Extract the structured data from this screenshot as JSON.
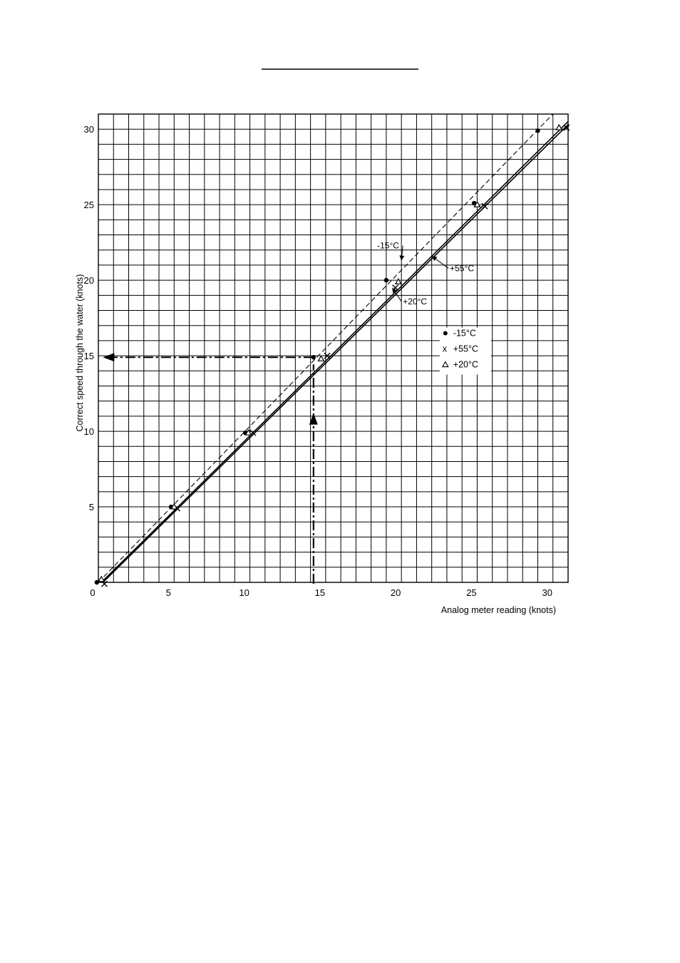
{
  "chart_data": {
    "type": "line",
    "title": "",
    "xlabel": "Analog meter reading (knots)",
    "ylabel": "Correct speed through the water (knots)",
    "xlim": [
      0,
      31
    ],
    "ylim": [
      0,
      31
    ],
    "grid": true,
    "x_ticks": [
      {
        "value": 0,
        "label": "0"
      },
      {
        "value": 5,
        "label": "5"
      },
      {
        "value": 10,
        "label": "10"
      },
      {
        "value": 15,
        "label": "15"
      },
      {
        "value": 20,
        "label": "20"
      },
      {
        "value": 25,
        "label": "25"
      },
      {
        "value": 30,
        "label": "30"
      }
    ],
    "y_ticks": [
      {
        "value": 5,
        "label": "5"
      },
      {
        "value": 10,
        "label": "10"
      },
      {
        "value": 15,
        "label": "15"
      },
      {
        "value": 20,
        "label": "20"
      },
      {
        "value": 25,
        "label": "25"
      },
      {
        "value": 30,
        "label": "30"
      }
    ],
    "series": [
      {
        "name": "-15°C",
        "line_style": "dashed",
        "marker": "dot",
        "line": [
          [
            0,
            0
          ],
          [
            30,
            31
          ]
        ],
        "points": [
          [
            -0.1,
            0
          ],
          [
            4.8,
            5
          ],
          [
            9.7,
            9.9
          ],
          [
            14.2,
            14.9
          ],
          [
            19.0,
            20.0
          ],
          [
            24.8,
            25.1
          ],
          [
            29.0,
            29.9
          ]
        ]
      },
      {
        "name": "+55°C",
        "line_style": "solid",
        "marker": "x",
        "line": [
          [
            0.3,
            0
          ],
          [
            31,
            30.3
          ]
        ],
        "points": [
          [
            0.4,
            -0.1
          ],
          [
            5.2,
            4.9
          ],
          [
            10.2,
            9.9
          ],
          [
            15.1,
            15.0
          ],
          [
            19.6,
            19.5
          ],
          [
            25.5,
            24.9
          ],
          [
            30.9,
            30.1
          ]
        ]
      },
      {
        "name": "+20°C",
        "line_style": "solid",
        "marker": "triangle",
        "line": [
          [
            0.2,
            0
          ],
          [
            31,
            30.5
          ]
        ],
        "points": [
          [
            0.2,
            0.2
          ],
          [
            5.0,
            5.0
          ],
          [
            9.9,
            9.9
          ],
          [
            14.7,
            14.8
          ],
          [
            19.8,
            19.9
          ],
          [
            25.0,
            25.0
          ],
          [
            30.4,
            30.1
          ]
        ]
      }
    ],
    "legend": {
      "placement": "right-middle",
      "entries": [
        {
          "symbol": "dot",
          "label": "-15°C"
        },
        {
          "symbol": "x",
          "label": "+55°C"
        },
        {
          "symbol": "triangle",
          "label": "+20°C"
        }
      ]
    },
    "annotations": [
      {
        "text": "-15°C",
        "x": 18.4,
        "y": 22.1,
        "arrow_to": [
          20.0,
          21.3
        ]
      },
      {
        "text": "+55°C",
        "x": 23.2,
        "y": 20.6,
        "arrow_to": [
          22.0,
          21.6
        ]
      },
      {
        "text": "+20°C",
        "x": 20.1,
        "y": 18.4,
        "arrow_to": [
          19.4,
          19.5
        ]
      }
    ],
    "example_reading": {
      "x": 14.2,
      "y": 14.9
    }
  }
}
